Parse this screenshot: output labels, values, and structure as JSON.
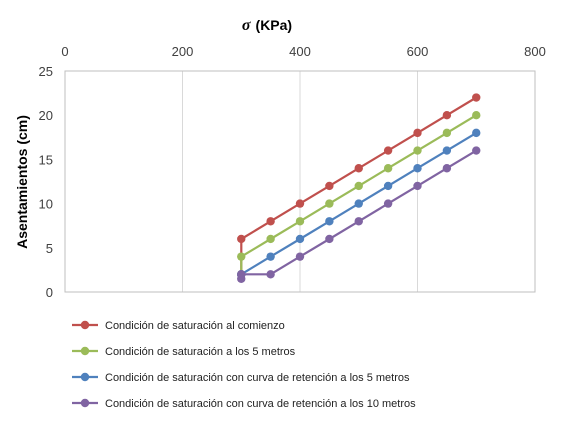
{
  "chart_data": {
    "type": "line",
    "xlabel_symbol": "σ",
    "xlabel_unit": "(KPa)",
    "ylabel": "Asentamientos (cm)",
    "xlim": [
      0,
      800
    ],
    "ylim": [
      0,
      25
    ],
    "x_ticks": [
      0,
      200,
      400,
      600,
      800
    ],
    "y_ticks": [
      0,
      5,
      10,
      15,
      20,
      25
    ],
    "x_axis_position": "top",
    "y_axis_inverted": true,
    "grid": "vertical",
    "legend_position": "bottom",
    "series": [
      {
        "name": "Condición de saturación al comienzo",
        "color": "#C0504D",
        "x": [
          300,
          300,
          350,
          400,
          450,
          500,
          550,
          600,
          650,
          700
        ],
        "y": [
          2,
          6,
          8,
          10,
          12,
          14,
          16,
          18,
          20,
          22
        ]
      },
      {
        "name": "Condición de saturación a los 5 metros",
        "color": "#9BBB59",
        "x": [
          300,
          300,
          350,
          400,
          450,
          500,
          550,
          600,
          650,
          700
        ],
        "y": [
          2,
          4,
          6,
          8,
          10,
          12,
          14,
          16,
          18,
          20
        ]
      },
      {
        "name": "Condición de saturación con curva de retención a los 5 metros",
        "color": "#4F81BD",
        "x": [
          300,
          300,
          350,
          400,
          450,
          500,
          550,
          600,
          650,
          700
        ],
        "y": [
          2,
          2,
          4,
          6,
          8,
          10,
          12,
          14,
          16,
          18
        ]
      },
      {
        "name": "Condición de saturación con curva de retención a los 10 metros",
        "color": "#8064A2",
        "x": [
          300,
          300,
          350,
          400,
          450,
          500,
          550,
          600,
          650,
          700
        ],
        "y": [
          1.5,
          2,
          2,
          4,
          6,
          8,
          10,
          12,
          14,
          16
        ]
      }
    ]
  }
}
